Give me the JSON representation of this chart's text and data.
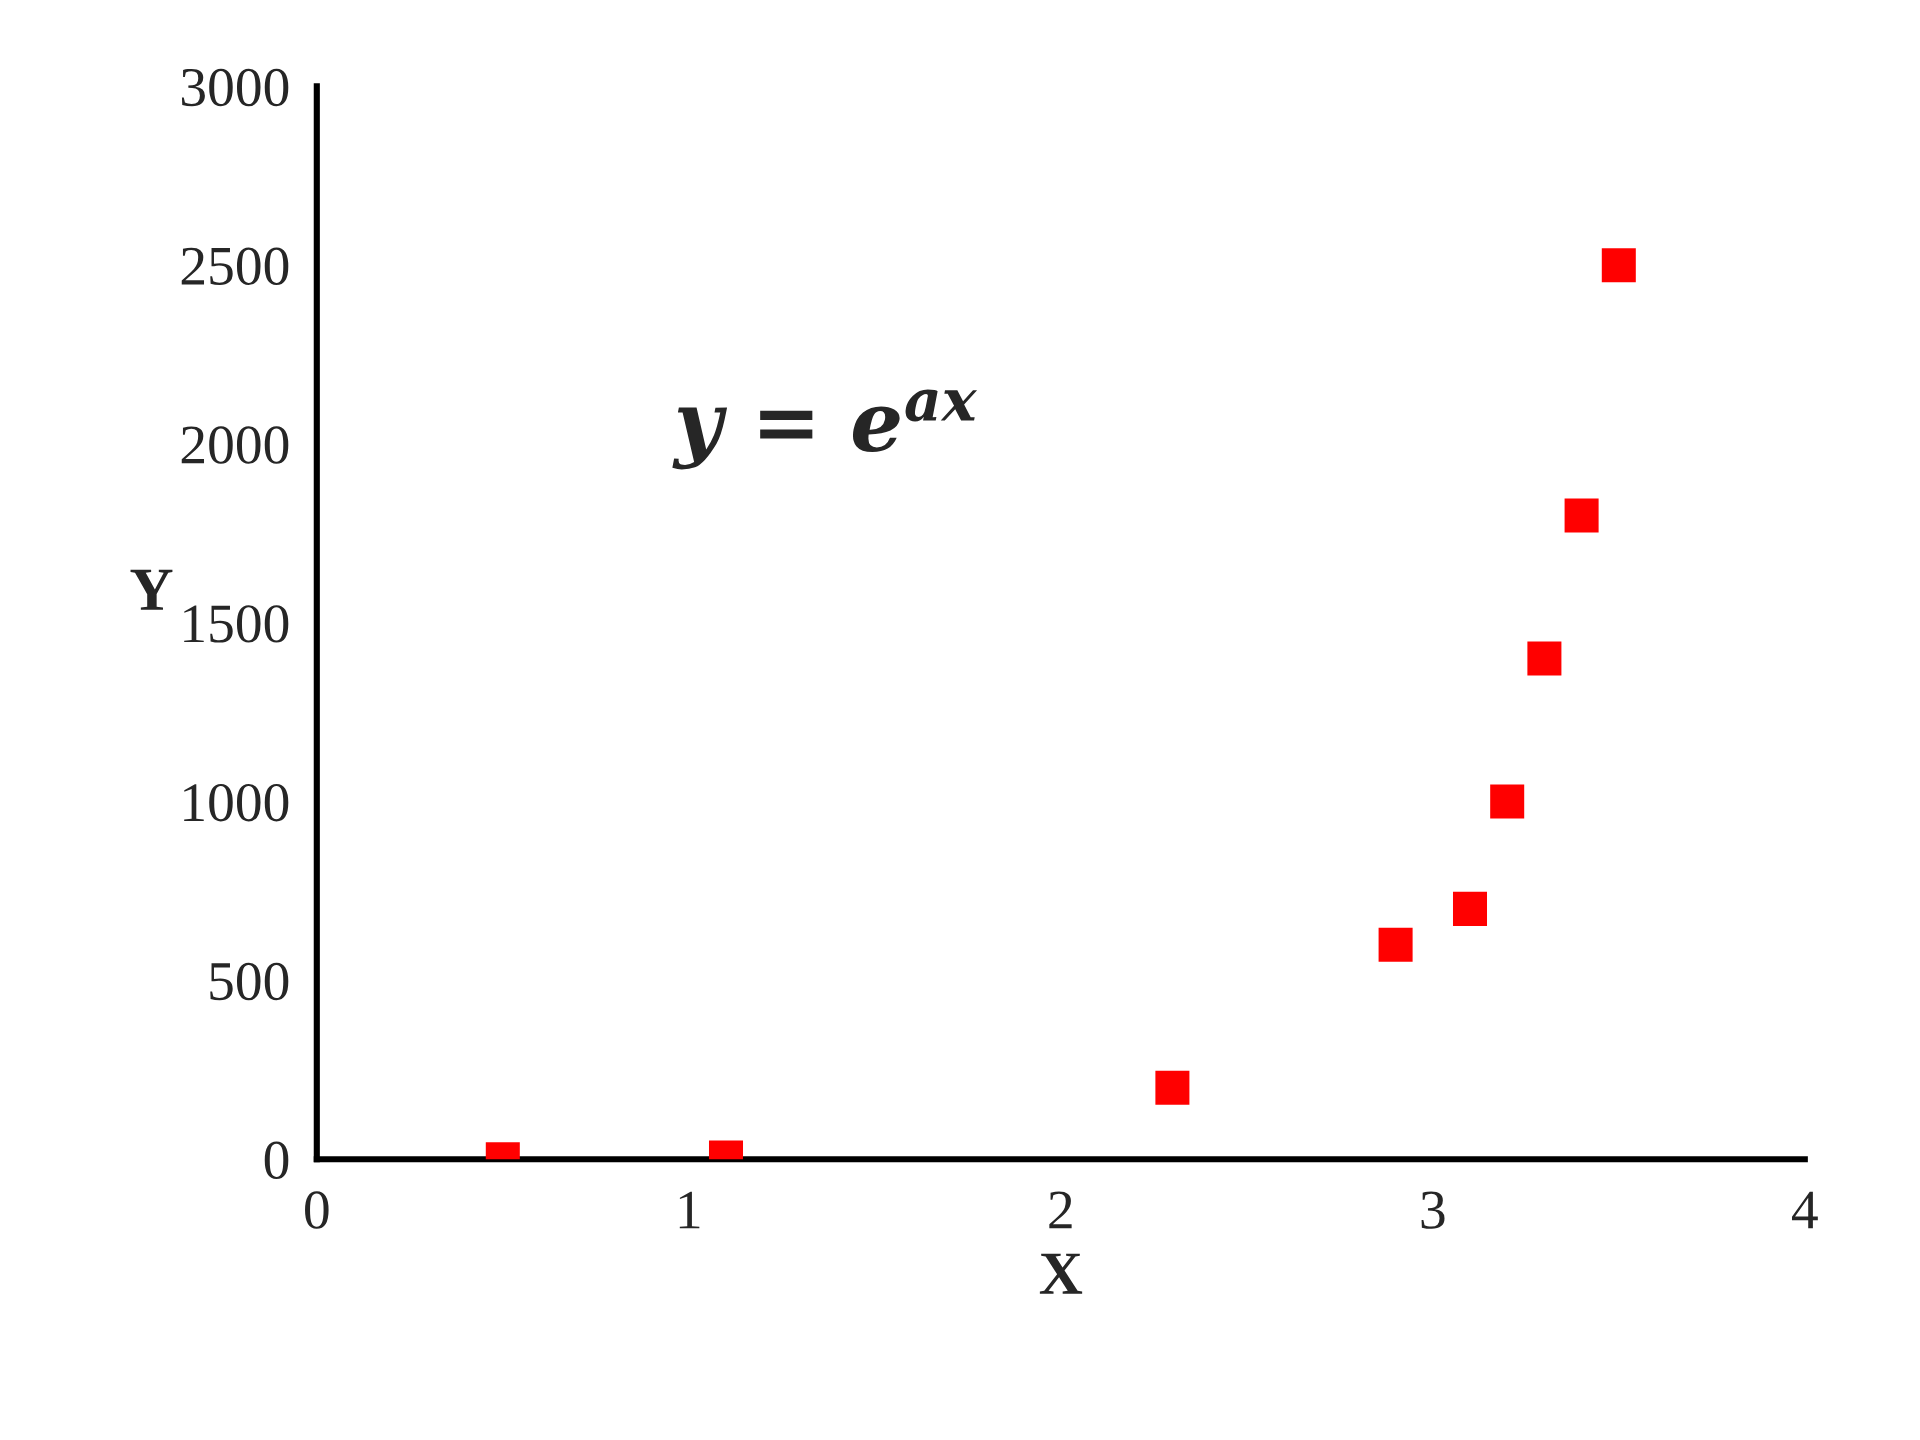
{
  "chart_data": {
    "type": "scatter",
    "xlabel": "X",
    "ylabel": "Y",
    "annotations": [
      "y = e$^{ax}$"
    ],
    "x": [
      0.5,
      1.1,
      2.3,
      2.9,
      3.1,
      3.2,
      3.3,
      3.4,
      3.5
    ],
    "series": [
      {
        "color": "#ff0000",
        "values": [
          0,
          5,
          200,
          600,
          700,
          1000,
          1400,
          1800,
          2500
        ]
      }
    ],
    "xlim": [
      0,
      4
    ],
    "xticks": [
      0,
      1,
      2,
      3,
      4
    ],
    "ylim": [
      0,
      3000
    ],
    "yticks": [
      0,
      500,
      1000,
      1500,
      2000,
      2500,
      3000
    ],
    "marker": "square",
    "grid": false,
    "legend": false
  }
}
